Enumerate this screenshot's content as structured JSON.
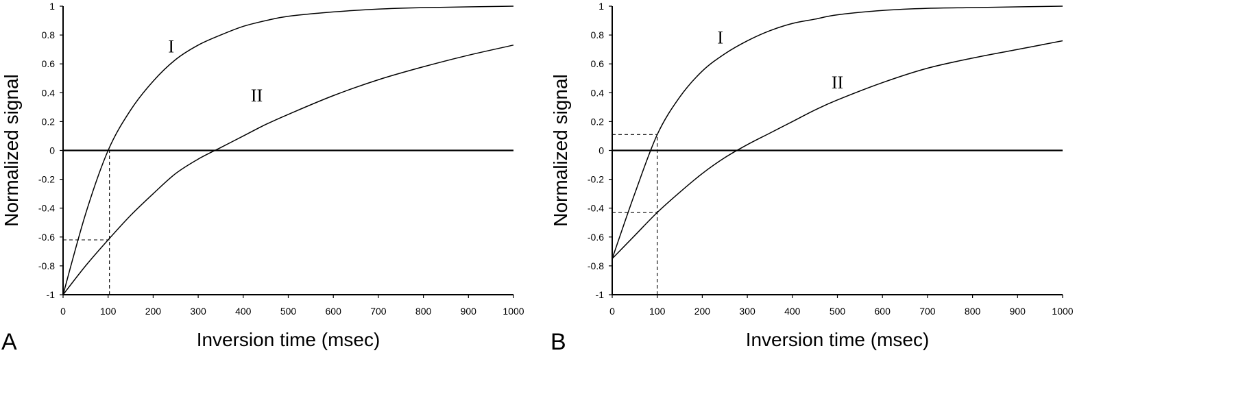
{
  "chart_data": [
    {
      "type": "line",
      "panel_label": "A",
      "xlabel": "Inversion time (msec)",
      "ylabel": "Normalized signal",
      "xlim": [
        0,
        1000
      ],
      "ylim": [
        -1,
        1
      ],
      "x_ticks": [
        "0",
        "100",
        "200",
        "300",
        "400",
        "500",
        "600",
        "700",
        "800",
        "900",
        "1000"
      ],
      "y_ticks": [
        "1",
        "0.8",
        "0.6",
        "0.4",
        "0.2",
        "0",
        "-0.2",
        "-0.4",
        "-0.6",
        "-0.8",
        "-1"
      ],
      "grid": false,
      "series": [
        {
          "name": "I",
          "label_at": [
            240,
            0.68
          ],
          "x": [
            0,
            50,
            100,
            150,
            200,
            250,
            300,
            350,
            400,
            450,
            500,
            600,
            700,
            800,
            900,
            1000
          ],
          "y": [
            -1.0,
            -0.44,
            0.0,
            0.28,
            0.48,
            0.63,
            0.73,
            0.8,
            0.86,
            0.9,
            0.93,
            0.96,
            0.98,
            0.99,
            0.995,
            1.0
          ]
        },
        {
          "name": "II",
          "label_at": [
            430,
            0.34
          ],
          "x": [
            0,
            50,
            100,
            150,
            200,
            250,
            300,
            350,
            400,
            450,
            500,
            600,
            700,
            800,
            900,
            1000
          ],
          "y": [
            -1.0,
            -0.8,
            -0.62,
            -0.45,
            -0.3,
            -0.16,
            -0.06,
            0.02,
            0.1,
            0.18,
            0.25,
            0.38,
            0.49,
            0.58,
            0.66,
            0.73
          ]
        },
        {
          "name": "",
          "style": "baseline",
          "x": [
            0,
            1000
          ],
          "y": [
            0,
            0
          ]
        }
      ],
      "guides": [
        {
          "x": [
            103,
            103
          ],
          "y": [
            -1,
            0
          ]
        },
        {
          "x": [
            0,
            103
          ],
          "y": [
            -0.62,
            -0.62
          ]
        }
      ]
    },
    {
      "type": "line",
      "panel_label": "B",
      "xlabel": "Inversion time (msec)",
      "ylabel": "Normalized signal",
      "xlim": [
        0,
        1000
      ],
      "ylim": [
        -1,
        1
      ],
      "x_ticks": [
        "0",
        "100",
        "200",
        "300",
        "400",
        "500",
        "600",
        "700",
        "800",
        "900",
        "1000"
      ],
      "y_ticks": [
        "1",
        "0.8",
        "0.6",
        "0.4",
        "0.2",
        "0",
        "-0.2",
        "-0.4",
        "-0.6",
        "-0.8",
        "-1"
      ],
      "grid": false,
      "series": [
        {
          "name": "I",
          "label_at": [
            240,
            0.74
          ],
          "x": [
            0,
            50,
            100,
            150,
            200,
            250,
            300,
            350,
            400,
            450,
            500,
            600,
            700,
            800,
            900,
            1000
          ],
          "y": [
            -0.75,
            -0.3,
            0.11,
            0.37,
            0.55,
            0.67,
            0.76,
            0.83,
            0.88,
            0.91,
            0.94,
            0.97,
            0.985,
            0.99,
            0.995,
            1.0
          ]
        },
        {
          "name": "II",
          "label_at": [
            500,
            0.43
          ],
          "x": [
            0,
            50,
            100,
            150,
            200,
            250,
            300,
            350,
            400,
            450,
            500,
            600,
            700,
            800,
            900,
            1000
          ],
          "y": [
            -0.75,
            -0.59,
            -0.43,
            -0.29,
            -0.16,
            -0.05,
            0.04,
            0.12,
            0.2,
            0.28,
            0.35,
            0.47,
            0.57,
            0.64,
            0.7,
            0.76
          ]
        },
        {
          "name": "",
          "style": "baseline",
          "x": [
            0,
            1000
          ],
          "y": [
            0,
            0
          ]
        }
      ],
      "guides": [
        {
          "x": [
            100,
            100
          ],
          "y": [
            -1,
            0.11
          ]
        },
        {
          "x": [
            0,
            100
          ],
          "y": [
            0.11,
            0.11
          ]
        },
        {
          "x": [
            0,
            100
          ],
          "y": [
            -0.43,
            -0.43
          ]
        }
      ]
    }
  ]
}
